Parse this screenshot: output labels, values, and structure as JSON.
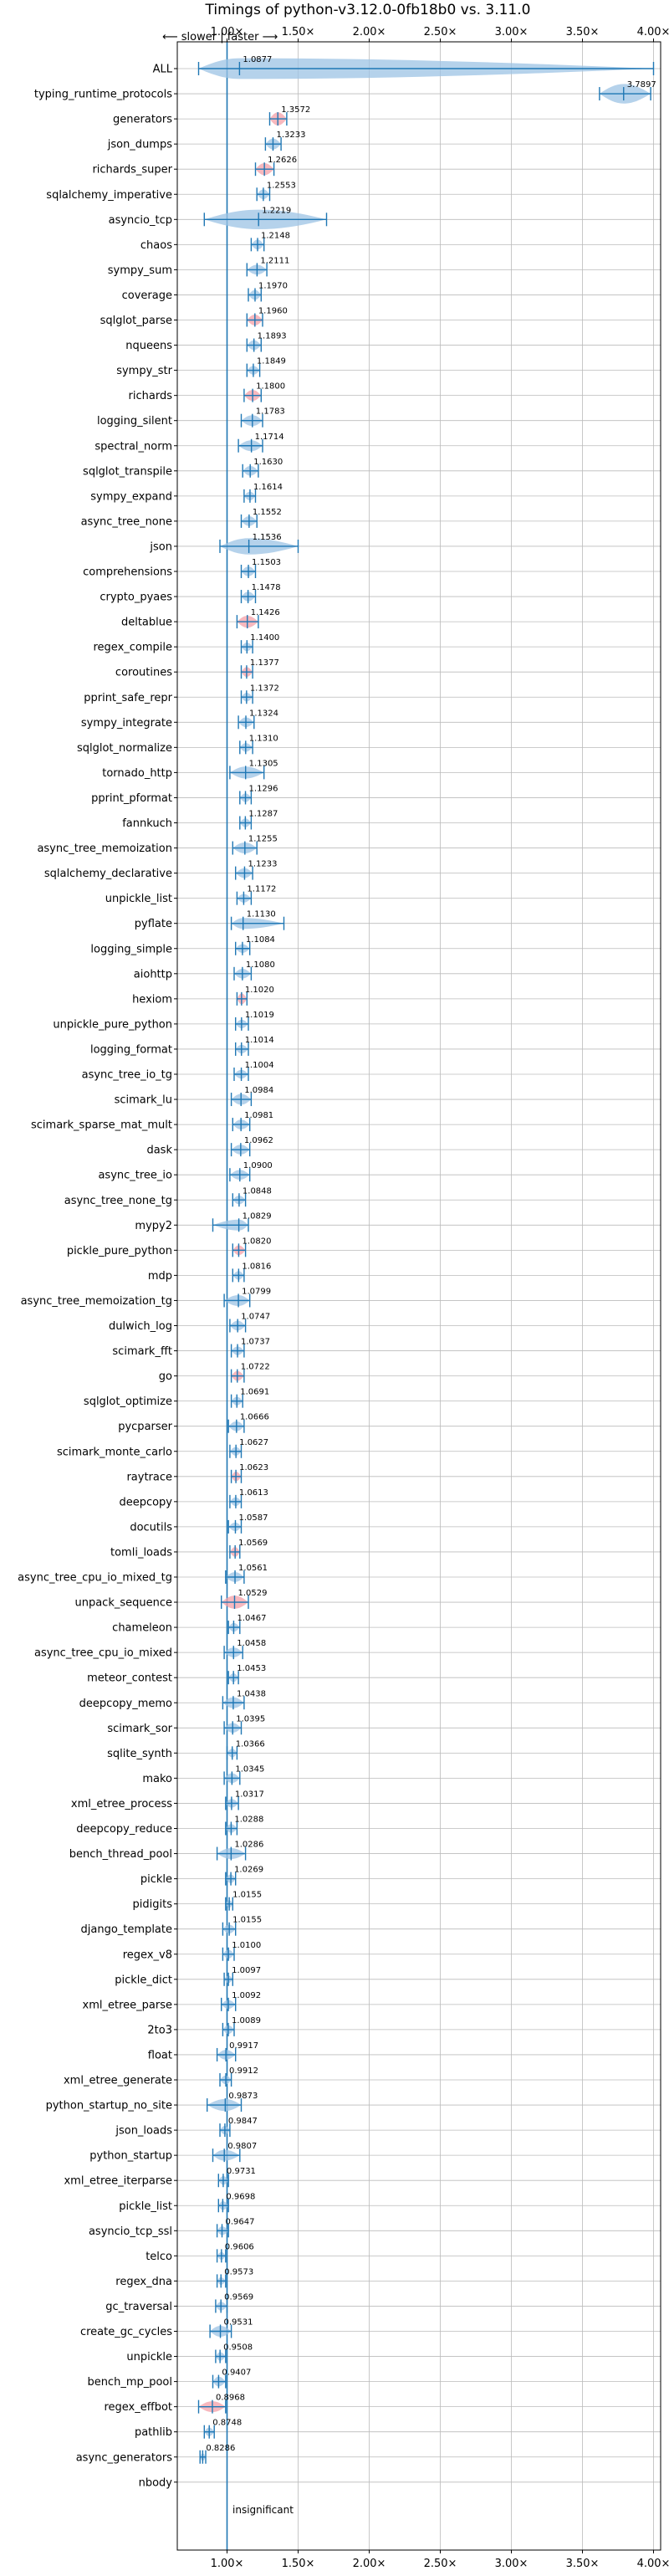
{
  "chart_data": {
    "type": "violin",
    "title": "Timings of python-v3.12.0-0fb18b0 vs. 3.11.0",
    "direction_note": "⟵ slower | faster ⟶",
    "bottom_note": "insignificant",
    "xlim": [
      0.65,
      4.05
    ],
    "x_ticks": [
      1.0,
      1.5,
      2.0,
      2.5,
      3.0,
      3.5,
      4.0
    ],
    "x_tick_labels": [
      "1.00×",
      "1.50×",
      "2.00×",
      "2.50×",
      "3.00×",
      "3.50×",
      "4.00×"
    ],
    "reference_line": 1.0,
    "grid": true,
    "colors": {
      "violin": "#9cc3e4",
      "line": "#1f77b4",
      "highlight": "#f4a0a8",
      "grid": "#bbbbbb"
    },
    "benchmarks": [
      {
        "name": "ALL",
        "value": 1.0877,
        "label": "1.0877",
        "lo": 0.8,
        "hi": 4.0,
        "w": 0.95,
        "hl": false
      },
      {
        "name": "typing_runtime_protocols",
        "value": 3.7897,
        "label": "3.7897",
        "lo": 3.62,
        "hi": 3.98,
        "w": 0.9,
        "hl": false
      },
      {
        "name": "generators",
        "value": 1.3572,
        "label": "1.3572",
        "lo": 1.3,
        "hi": 1.42,
        "w": 0.6,
        "hl": true
      },
      {
        "name": "json_dumps",
        "value": 1.3233,
        "label": "1.3233",
        "lo": 1.27,
        "hi": 1.38,
        "w": 0.5,
        "hl": false
      },
      {
        "name": "richards_super",
        "value": 1.2626,
        "label": "1.2626",
        "lo": 1.2,
        "hi": 1.33,
        "w": 0.55,
        "hl": true
      },
      {
        "name": "sqlalchemy_imperative",
        "value": 1.2553,
        "label": "1.2553",
        "lo": 1.21,
        "hi": 1.3,
        "w": 0.45,
        "hl": false
      },
      {
        "name": "asyncio_tcp",
        "value": 1.2219,
        "label": "1.2219",
        "lo": 0.84,
        "hi": 1.7,
        "w": 0.9,
        "hl": false
      },
      {
        "name": "chaos",
        "value": 1.2148,
        "label": "1.2148",
        "lo": 1.17,
        "hi": 1.26,
        "w": 0.45,
        "hl": false
      },
      {
        "name": "sympy_sum",
        "value": 1.2111,
        "label": "1.2111",
        "lo": 1.14,
        "hi": 1.28,
        "w": 0.45,
        "hl": false
      },
      {
        "name": "coverage",
        "value": 1.197,
        "label": "1.1970",
        "lo": 1.15,
        "hi": 1.24,
        "w": 0.45,
        "hl": false
      },
      {
        "name": "sqlglot_parse",
        "value": 1.196,
        "label": "1.1960",
        "lo": 1.14,
        "hi": 1.25,
        "w": 0.5,
        "hl": true
      },
      {
        "name": "nqueens",
        "value": 1.1893,
        "label": "1.1893",
        "lo": 1.14,
        "hi": 1.24,
        "w": 0.45,
        "hl": false
      },
      {
        "name": "sympy_str",
        "value": 1.1849,
        "label": "1.1849",
        "lo": 1.14,
        "hi": 1.23,
        "w": 0.4,
        "hl": false
      },
      {
        "name": "richards",
        "value": 1.18,
        "label": "1.1800",
        "lo": 1.12,
        "hi": 1.24,
        "w": 0.5,
        "hl": true
      },
      {
        "name": "logging_silent",
        "value": 1.1783,
        "label": "1.1783",
        "lo": 1.1,
        "hi": 1.25,
        "w": 0.5,
        "hl": false
      },
      {
        "name": "spectral_norm",
        "value": 1.1714,
        "label": "1.1714",
        "lo": 1.08,
        "hi": 1.25,
        "w": 0.5,
        "hl": false
      },
      {
        "name": "sqlglot_transpile",
        "value": 1.163,
        "label": "1.1630",
        "lo": 1.11,
        "hi": 1.22,
        "w": 0.45,
        "hl": false
      },
      {
        "name": "sympy_expand",
        "value": 1.1614,
        "label": "1.1614",
        "lo": 1.12,
        "hi": 1.2,
        "w": 0.4,
        "hl": false
      },
      {
        "name": "async_tree_none",
        "value": 1.1552,
        "label": "1.1552",
        "lo": 1.1,
        "hi": 1.21,
        "w": 0.45,
        "hl": false
      },
      {
        "name": "json",
        "value": 1.1536,
        "label": "1.1536",
        "lo": 0.95,
        "hi": 1.5,
        "w": 0.75,
        "hl": false
      },
      {
        "name": "comprehensions",
        "value": 1.1503,
        "label": "1.1503",
        "lo": 1.1,
        "hi": 1.2,
        "w": 0.45,
        "hl": false
      },
      {
        "name": "crypto_pyaes",
        "value": 1.1478,
        "label": "1.1478",
        "lo": 1.1,
        "hi": 1.2,
        "w": 0.45,
        "hl": false
      },
      {
        "name": "deltablue",
        "value": 1.1426,
        "label": "1.1426",
        "lo": 1.07,
        "hi": 1.22,
        "w": 0.55,
        "hl": true
      },
      {
        "name": "regex_compile",
        "value": 1.14,
        "label": "1.1400",
        "lo": 1.1,
        "hi": 1.18,
        "w": 0.4,
        "hl": false
      },
      {
        "name": "coroutines",
        "value": 1.1377,
        "label": "1.1377",
        "lo": 1.1,
        "hi": 1.18,
        "w": 0.45,
        "hl": true
      },
      {
        "name": "pprint_safe_repr",
        "value": 1.1372,
        "label": "1.1372",
        "lo": 1.1,
        "hi": 1.18,
        "w": 0.4,
        "hl": false
      },
      {
        "name": "sympy_integrate",
        "value": 1.1324,
        "label": "1.1324",
        "lo": 1.08,
        "hi": 1.19,
        "w": 0.45,
        "hl": false
      },
      {
        "name": "sqlglot_normalize",
        "value": 1.131,
        "label": "1.1310",
        "lo": 1.09,
        "hi": 1.18,
        "w": 0.4,
        "hl": false
      },
      {
        "name": "tornado_http",
        "value": 1.1305,
        "label": "1.1305",
        "lo": 1.02,
        "hi": 1.26,
        "w": 0.55,
        "hl": false
      },
      {
        "name": "pprint_pformat",
        "value": 1.1296,
        "label": "1.1296",
        "lo": 1.09,
        "hi": 1.17,
        "w": 0.4,
        "hl": false
      },
      {
        "name": "fannkuch",
        "value": 1.1287,
        "label": "1.1287",
        "lo": 1.09,
        "hi": 1.17,
        "w": 0.4,
        "hl": false
      },
      {
        "name": "async_tree_memoization",
        "value": 1.1255,
        "label": "1.1255",
        "lo": 1.04,
        "hi": 1.21,
        "w": 0.5,
        "hl": false
      },
      {
        "name": "sqlalchemy_declarative",
        "value": 1.1233,
        "label": "1.1233",
        "lo": 1.06,
        "hi": 1.18,
        "w": 0.45,
        "hl": false
      },
      {
        "name": "unpickle_list",
        "value": 1.1172,
        "label": "1.1172",
        "lo": 1.07,
        "hi": 1.17,
        "w": 0.4,
        "hl": false
      },
      {
        "name": "pyflate",
        "value": 1.113,
        "label": "1.1130",
        "lo": 1.03,
        "hi": 1.4,
        "w": 0.5,
        "hl": false
      },
      {
        "name": "logging_simple",
        "value": 1.1084,
        "label": "1.1084",
        "lo": 1.06,
        "hi": 1.16,
        "w": 0.4,
        "hl": false
      },
      {
        "name": "aiohttp",
        "value": 1.108,
        "label": "1.1080",
        "lo": 1.05,
        "hi": 1.17,
        "w": 0.45,
        "hl": false
      },
      {
        "name": "hexiom",
        "value": 1.102,
        "label": "1.1020",
        "lo": 1.07,
        "hi": 1.14,
        "w": 0.5,
        "hl": true
      },
      {
        "name": "unpickle_pure_python",
        "value": 1.1019,
        "label": "1.1019",
        "lo": 1.06,
        "hi": 1.15,
        "w": 0.4,
        "hl": false
      },
      {
        "name": "logging_format",
        "value": 1.1014,
        "label": "1.1014",
        "lo": 1.06,
        "hi": 1.15,
        "w": 0.4,
        "hl": false
      },
      {
        "name": "async_tree_io_tg",
        "value": 1.1004,
        "label": "1.1004",
        "lo": 1.05,
        "hi": 1.15,
        "w": 0.4,
        "hl": false
      },
      {
        "name": "scimark_lu",
        "value": 1.0984,
        "label": "1.0984",
        "lo": 1.03,
        "hi": 1.17,
        "w": 0.5,
        "hl": false
      },
      {
        "name": "scimark_sparse_mat_mult",
        "value": 1.0981,
        "label": "1.0981",
        "lo": 1.04,
        "hi": 1.16,
        "w": 0.45,
        "hl": false
      },
      {
        "name": "dask",
        "value": 1.0962,
        "label": "1.0962",
        "lo": 1.03,
        "hi": 1.16,
        "w": 0.45,
        "hl": false
      },
      {
        "name": "async_tree_io",
        "value": 1.09,
        "label": "1.0900",
        "lo": 1.02,
        "hi": 1.16,
        "w": 0.45,
        "hl": false
      },
      {
        "name": "async_tree_none_tg",
        "value": 1.0848,
        "label": "1.0848",
        "lo": 1.04,
        "hi": 1.13,
        "w": 0.4,
        "hl": false
      },
      {
        "name": "mypy2",
        "value": 1.0829,
        "label": "1.0829",
        "lo": 0.9,
        "hi": 1.15,
        "w": 0.5,
        "hl": false
      },
      {
        "name": "pickle_pure_python",
        "value": 1.082,
        "label": "1.0820",
        "lo": 1.04,
        "hi": 1.13,
        "w": 0.45,
        "hl": true
      },
      {
        "name": "mdp",
        "value": 1.0816,
        "label": "1.0816",
        "lo": 1.04,
        "hi": 1.12,
        "w": 0.4,
        "hl": false
      },
      {
        "name": "async_tree_memoization_tg",
        "value": 1.0799,
        "label": "1.0799",
        "lo": 0.98,
        "hi": 1.16,
        "w": 0.5,
        "hl": false
      },
      {
        "name": "dulwich_log",
        "value": 1.0747,
        "label": "1.0747",
        "lo": 1.02,
        "hi": 1.13,
        "w": 0.45,
        "hl": false
      },
      {
        "name": "scimark_fft",
        "value": 1.0737,
        "label": "1.0737",
        "lo": 1.03,
        "hi": 1.12,
        "w": 0.4,
        "hl": false
      },
      {
        "name": "go",
        "value": 1.0722,
        "label": "1.0722",
        "lo": 1.03,
        "hi": 1.12,
        "w": 0.45,
        "hl": true
      },
      {
        "name": "sqlglot_optimize",
        "value": 1.0691,
        "label": "1.0691",
        "lo": 1.03,
        "hi": 1.11,
        "w": 0.4,
        "hl": false
      },
      {
        "name": "pycparser",
        "value": 1.0666,
        "label": "1.0666",
        "lo": 1.01,
        "hi": 1.12,
        "w": 0.45,
        "hl": false
      },
      {
        "name": "scimark_monte_carlo",
        "value": 1.0627,
        "label": "1.0627",
        "lo": 1.02,
        "hi": 1.1,
        "w": 0.4,
        "hl": false
      },
      {
        "name": "raytrace",
        "value": 1.0623,
        "label": "1.0623",
        "lo": 1.03,
        "hi": 1.1,
        "w": 0.45,
        "hl": true
      },
      {
        "name": "deepcopy",
        "value": 1.0613,
        "label": "1.0613",
        "lo": 1.02,
        "hi": 1.1,
        "w": 0.4,
        "hl": false
      },
      {
        "name": "docutils",
        "value": 1.0587,
        "label": "1.0587",
        "lo": 1.01,
        "hi": 1.1,
        "w": 0.4,
        "hl": false
      },
      {
        "name": "tomli_loads",
        "value": 1.0569,
        "label": "1.0569",
        "lo": 1.02,
        "hi": 1.09,
        "w": 0.45,
        "hl": true
      },
      {
        "name": "async_tree_cpu_io_mixed_tg",
        "value": 1.0561,
        "label": "1.0561",
        "lo": 0.99,
        "hi": 1.12,
        "w": 0.45,
        "hl": false
      },
      {
        "name": "unpack_sequence",
        "value": 1.0529,
        "label": "1.0529",
        "lo": 0.96,
        "hi": 1.15,
        "w": 0.6,
        "hl": true
      },
      {
        "name": "chameleon",
        "value": 1.0467,
        "label": "1.0467",
        "lo": 1.01,
        "hi": 1.09,
        "w": 0.4,
        "hl": false
      },
      {
        "name": "async_tree_cpu_io_mixed",
        "value": 1.0458,
        "label": "1.0458",
        "lo": 0.98,
        "hi": 1.11,
        "w": 0.45,
        "hl": false
      },
      {
        "name": "meteor_contest",
        "value": 1.0453,
        "label": "1.0453",
        "lo": 1.01,
        "hi": 1.08,
        "w": 0.4,
        "hl": false
      },
      {
        "name": "deepcopy_memo",
        "value": 1.0438,
        "label": "1.0438",
        "lo": 0.97,
        "hi": 1.12,
        "w": 0.5,
        "hl": false
      },
      {
        "name": "scimark_sor",
        "value": 1.0395,
        "label": "1.0395",
        "lo": 0.98,
        "hi": 1.1,
        "w": 0.45,
        "hl": false
      },
      {
        "name": "sqlite_synth",
        "value": 1.0366,
        "label": "1.0366",
        "lo": 1.0,
        "hi": 1.07,
        "w": 0.4,
        "hl": false
      },
      {
        "name": "mako",
        "value": 1.0345,
        "label": "1.0345",
        "lo": 0.98,
        "hi": 1.09,
        "w": 0.45,
        "hl": false
      },
      {
        "name": "xml_etree_process",
        "value": 1.0317,
        "label": "1.0317",
        "lo": 0.99,
        "hi": 1.08,
        "w": 0.4,
        "hl": false
      },
      {
        "name": "deepcopy_reduce",
        "value": 1.0288,
        "label": "1.0288",
        "lo": 0.99,
        "hi": 1.07,
        "w": 0.4,
        "hl": false
      },
      {
        "name": "bench_thread_pool",
        "value": 1.0286,
        "label": "1.0286",
        "lo": 0.93,
        "hi": 1.13,
        "w": 0.5,
        "hl": false
      },
      {
        "name": "pickle",
        "value": 1.0269,
        "label": "1.0269",
        "lo": 0.99,
        "hi": 1.06,
        "w": 0.4,
        "hl": false
      },
      {
        "name": "pidigits",
        "value": 1.0155,
        "label": "1.0155",
        "lo": 0.99,
        "hi": 1.04,
        "w": 0.35,
        "hl": false
      },
      {
        "name": "django_template",
        "value": 1.0155,
        "label": "1.0155",
        "lo": 0.97,
        "hi": 1.06,
        "w": 0.4,
        "hl": false
      },
      {
        "name": "regex_v8",
        "value": 1.01,
        "label": "1.0100",
        "lo": 0.97,
        "hi": 1.05,
        "w": 0.4,
        "hl": false
      },
      {
        "name": "pickle_dict",
        "value": 1.0097,
        "label": "1.0097",
        "lo": 0.98,
        "hi": 1.04,
        "w": 0.35,
        "hl": false
      },
      {
        "name": "xml_etree_parse",
        "value": 1.0092,
        "label": "1.0092",
        "lo": 0.96,
        "hi": 1.06,
        "w": 0.4,
        "hl": false
      },
      {
        "name": "2to3",
        "value": 1.0089,
        "label": "1.0089",
        "lo": 0.97,
        "hi": 1.05,
        "w": 0.4,
        "hl": false
      },
      {
        "name": "float",
        "value": 0.9917,
        "label": "0.9917",
        "lo": 0.93,
        "hi": 1.06,
        "w": 0.45,
        "hl": false
      },
      {
        "name": "xml_etree_generate",
        "value": 0.9912,
        "label": "0.9912",
        "lo": 0.95,
        "hi": 1.03,
        "w": 0.4,
        "hl": false
      },
      {
        "name": "python_startup_no_site",
        "value": 0.9873,
        "label": "0.9873",
        "lo": 0.86,
        "hi": 1.1,
        "w": 0.55,
        "hl": false
      },
      {
        "name": "json_loads",
        "value": 0.9847,
        "label": "0.9847",
        "lo": 0.95,
        "hi": 1.02,
        "w": 0.4,
        "hl": false
      },
      {
        "name": "python_startup",
        "value": 0.9807,
        "label": "0.9807",
        "lo": 0.9,
        "hi": 1.09,
        "w": 0.5,
        "hl": false
      },
      {
        "name": "xml_etree_iterparse",
        "value": 0.9731,
        "label": "0.9731",
        "lo": 0.94,
        "hi": 1.01,
        "w": 0.4,
        "hl": false
      },
      {
        "name": "pickle_list",
        "value": 0.9698,
        "label": "0.9698",
        "lo": 0.94,
        "hi": 1.01,
        "w": 0.4,
        "hl": false
      },
      {
        "name": "asyncio_tcp_ssl",
        "value": 0.9647,
        "label": "0.9647",
        "lo": 0.93,
        "hi": 1.01,
        "w": 0.4,
        "hl": false
      },
      {
        "name": "telco",
        "value": 0.9606,
        "label": "0.9606",
        "lo": 0.93,
        "hi": 0.99,
        "w": 0.35,
        "hl": false
      },
      {
        "name": "regex_dna",
        "value": 0.9573,
        "label": "0.9573",
        "lo": 0.93,
        "hi": 0.99,
        "w": 0.35,
        "hl": false
      },
      {
        "name": "gc_traversal",
        "value": 0.9569,
        "label": "0.9569",
        "lo": 0.92,
        "hi": 1.0,
        "w": 0.4,
        "hl": false
      },
      {
        "name": "create_gc_cycles",
        "value": 0.9531,
        "label": "0.9531",
        "lo": 0.88,
        "hi": 1.03,
        "w": 0.5,
        "hl": false
      },
      {
        "name": "unpickle",
        "value": 0.9508,
        "label": "0.9508",
        "lo": 0.92,
        "hi": 0.99,
        "w": 0.4,
        "hl": false
      },
      {
        "name": "bench_mp_pool",
        "value": 0.9407,
        "label": "0.9407",
        "lo": 0.9,
        "hi": 0.99,
        "w": 0.45,
        "hl": false
      },
      {
        "name": "regex_effbot",
        "value": 0.8968,
        "label": "0.8968",
        "lo": 0.8,
        "hi": 0.99,
        "w": 0.5,
        "hl": true
      },
      {
        "name": "pathlib",
        "value": 0.8748,
        "label": "0.8748",
        "lo": 0.84,
        "hi": 0.91,
        "w": 0.4,
        "hl": false
      },
      {
        "name": "async_generators",
        "value": 0.8286,
        "label": "0.8286",
        "lo": 0.81,
        "hi": 0.85,
        "w": 0.35,
        "hl": false
      },
      {
        "name": "nbody",
        "value": null,
        "label": "",
        "lo": null,
        "hi": null,
        "w": 0,
        "hl": false
      }
    ]
  }
}
